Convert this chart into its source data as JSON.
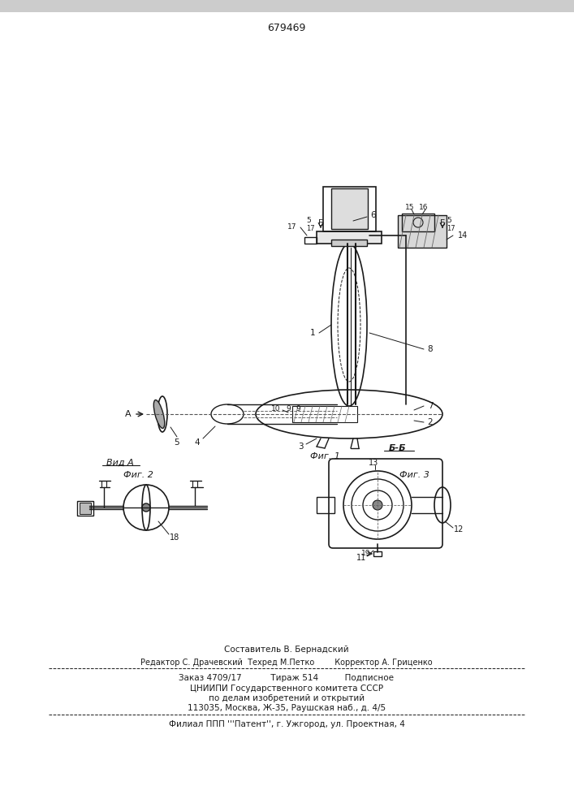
{
  "title": "679469",
  "bg_color": "#ffffff",
  "line_color": "#1a1a1a",
  "text_color": "#1a1a1a",
  "fig1_label": "Фиг. 1",
  "fig2_label": "Фиг. 2",
  "fig3_label": "Фиг. 3",
  "section_label": "Б-Б",
  "view_label": "Вид A",
  "footer_line1": "Составитель В. Бернадский",
  "footer_line2": "Редактор С. Драчевский  Техред М.Петко        Корректор А. Гриценко",
  "footer_line3": "Заказ 4709/17           Тираж 514          Подписное",
  "footer_line4": "ЦНИИПИ Государственного комитета СССР",
  "footer_line5": "по делам изобретений и открытий",
  "footer_line6": "113035, Москва, Ж-35, Раушская наб., д. 4/5",
  "footer_line7": "Филиал ППП '''Патент'', г. Ужгород, ул. Проектная, 4"
}
